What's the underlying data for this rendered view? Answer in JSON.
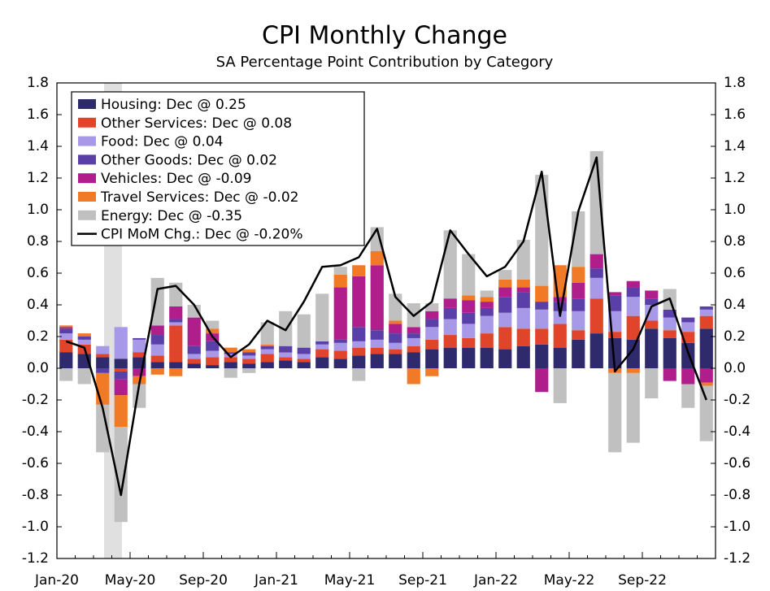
{
  "chart_data": {
    "type": "bar",
    "title": "CPI Monthly Change",
    "subtitle": "SA Percentage Point Contribution by Category",
    "stacked": true,
    "legend": "upper left",
    "categories": [
      "Jan-20",
      null,
      null,
      null,
      "May-20",
      null,
      null,
      null,
      "Sep-20",
      null,
      null,
      null,
      "Jan-21",
      null,
      null,
      null,
      "May-21",
      null,
      null,
      null,
      "Sep-21",
      null,
      null,
      null,
      "Jan-22",
      null,
      null,
      null,
      "May-22",
      null,
      null,
      null,
      "Sep-22",
      null,
      null,
      null
    ],
    "ylim": [
      -1.2,
      1.8
    ],
    "yticks": [
      -1.2,
      {
        "value": -1.0,
        "label": "-1.0"
      },
      -0.8,
      -0.6,
      -0.4,
      -0.2,
      {
        "value": 0,
        "label": "0.0"
      },
      0.2,
      0.4,
      0.6,
      0.8,
      {
        "value": 1.0,
        "label": "1.0"
      },
      1.2,
      1.4,
      1.6,
      1.8
    ],
    "y2lim": [
      -1.2,
      1.8
    ],
    "y2ticks": [
      -1.2,
      {
        "value": -1.0,
        "label": "-1.0"
      },
      -0.8,
      -0.6,
      -0.4,
      -0.2,
      {
        "value": 0,
        "label": "0.0"
      },
      0.2,
      0.4,
      0.6,
      0.8,
      {
        "value": 1.0,
        "label": "1.0"
      },
      1.2,
      1.4,
      1.6,
      1.8
    ],
    "series": [
      {
        "name": "Housing: Dec @ 0.25",
        "type": "bar",
        "color": "#2e2a6b",
        "values": [
          0.1,
          0.09,
          0.07,
          0.06,
          0.07,
          0.04,
          0.04,
          0.03,
          0.02,
          0.04,
          0.03,
          0.04,
          0.05,
          0.04,
          0.07,
          0.06,
          0.08,
          0.09,
          0.09,
          0.1,
          0.12,
          0.13,
          0.13,
          0.13,
          0.12,
          0.14,
          0.15,
          0.13,
          0.18,
          0.22,
          0.19,
          0.18,
          0.25,
          0.19,
          0.16,
          0.25
        ]
      },
      {
        "name": "Other Services: Dec @ 0.08",
        "type": "bar",
        "color": "#e0442a",
        "values": [
          0.08,
          0.06,
          0.02,
          -0.02,
          0.03,
          0.04,
          0.23,
          0.03,
          0.05,
          0.03,
          0.03,
          0.05,
          0.02,
          0.02,
          0.05,
          0.05,
          0.05,
          0.04,
          0.03,
          0.04,
          0.06,
          0.08,
          0.06,
          0.09,
          0.14,
          0.11,
          0.1,
          0.15,
          0.06,
          0.22,
          0.04,
          0.15,
          0.05,
          0.05,
          0.07,
          0.08
        ]
      },
      {
        "name": "Food: Dec @ 0.04",
        "type": "bar",
        "color": "#a899e8",
        "values": [
          0.04,
          0.03,
          0.05,
          0.2,
          0.08,
          0.07,
          0.02,
          0.03,
          0.04,
          0.02,
          0.02,
          0.03,
          0.03,
          0.03,
          0.03,
          0.05,
          0.04,
          0.05,
          0.04,
          0.05,
          0.08,
          0.1,
          0.09,
          0.11,
          0.09,
          0.13,
          0.12,
          0.08,
          0.12,
          0.13,
          0.13,
          0.12,
          0.1,
          0.08,
          0.06,
          0.04
        ]
      },
      {
        "name": "Other Goods: Dec @ 0.02",
        "type": "bar",
        "color": "#5b3fa8",
        "values": [
          0.03,
          0.02,
          -0.03,
          -0.05,
          0.01,
          0.06,
          0.02,
          0.05,
          0.06,
          0.01,
          0.02,
          0.02,
          0.04,
          0.04,
          0.02,
          0.02,
          0.09,
          0.06,
          0.06,
          0.03,
          0.05,
          0.07,
          0.07,
          0.05,
          0.1,
          0.1,
          0.05,
          0.06,
          0.08,
          0.06,
          0.1,
          0.06,
          0.04,
          0.05,
          0.03,
          0.02
        ]
      },
      {
        "name": "Vehicles: Dec @ -0.09",
        "type": "bar",
        "color": "#b01e8c",
        "values": [
          0.01,
          0.0,
          0.0,
          -0.1,
          -0.05,
          0.06,
          0.08,
          0.18,
          0.05,
          0.0,
          0.0,
          0.0,
          0.0,
          0.0,
          0.0,
          0.33,
          0.32,
          0.41,
          0.06,
          0.04,
          0.05,
          0.06,
          0.08,
          0.04,
          0.06,
          0.03,
          -0.15,
          0.03,
          0.1,
          0.09,
          0.02,
          0.04,
          0.05,
          -0.08,
          -0.1,
          -0.09
        ]
      },
      {
        "name": "Travel Services: Dec @ -0.02",
        "type": "bar",
        "color": "#f07a26",
        "values": [
          0.01,
          0.02,
          -0.2,
          -0.2,
          -0.05,
          -0.04,
          -0.05,
          0.0,
          0.03,
          0.03,
          0.02,
          0.01,
          0.0,
          0.0,
          0.0,
          0.08,
          0.07,
          0.09,
          0.02,
          -0.1,
          -0.05,
          0.0,
          0.03,
          0.03,
          0.05,
          0.05,
          0.1,
          0.2,
          0.1,
          0.0,
          -0.03,
          -0.03,
          0.0,
          0.0,
          0.0,
          -0.02
        ]
      },
      {
        "name": "Energy: Dec @ -0.35",
        "type": "bar",
        "color": "#c0c0c0",
        "values": [
          -0.08,
          -0.1,
          -0.3,
          -0.6,
          -0.15,
          0.3,
          0.15,
          0.08,
          0.05,
          -0.06,
          -0.03,
          0.14,
          0.22,
          0.21,
          0.3,
          0.05,
          -0.08,
          0.15,
          0.17,
          0.15,
          0.05,
          0.43,
          0.26,
          0.04,
          0.06,
          0.25,
          0.7,
          -0.22,
          0.35,
          0.65,
          -0.5,
          -0.44,
          -0.19,
          0.13,
          -0.15,
          -0.35
        ]
      },
      {
        "name": "CPI MoM Chg.: Dec @ -0.20%",
        "type": "line",
        "color": "#000000",
        "values": [
          0.17,
          0.13,
          -0.25,
          -0.8,
          -0.1,
          0.5,
          0.52,
          0.4,
          0.2,
          0.07,
          0.15,
          0.3,
          0.24,
          0.42,
          0.64,
          0.65,
          0.7,
          0.88,
          0.45,
          0.33,
          0.42,
          0.87,
          0.72,
          0.58,
          0.64,
          0.8,
          1.24,
          0.33,
          0.99,
          1.33,
          -0.02,
          0.12,
          0.39,
          0.44,
          0.1,
          -0.2
        ]
      }
    ]
  }
}
